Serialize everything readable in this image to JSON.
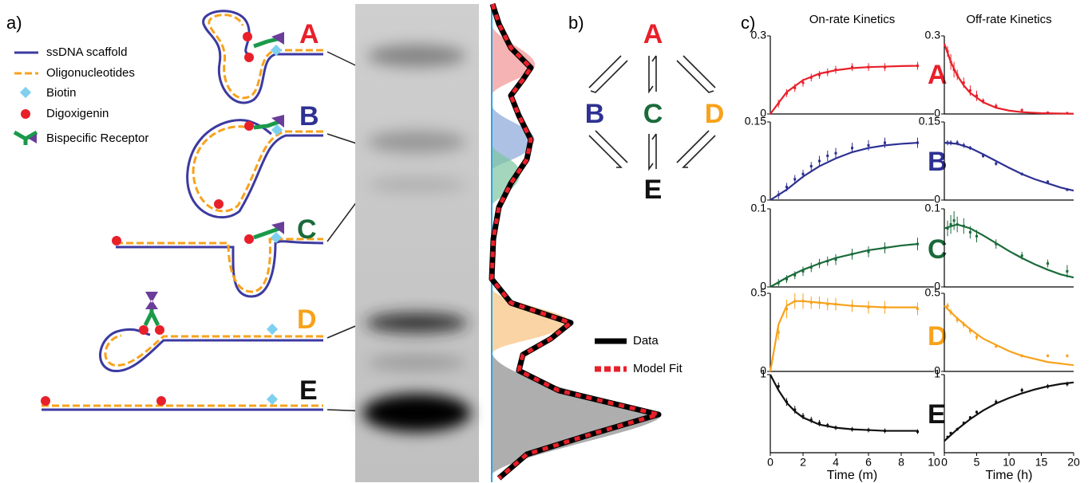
{
  "panel_a": {
    "label": "a)",
    "legend": [
      "ssDNA scaffold",
      "Oligonucleotides",
      "Biotin",
      "Digoxigenin",
      "Bispecific Receptor"
    ],
    "species": [
      "A",
      "B",
      "C",
      "D",
      "E"
    ],
    "profile_legend": [
      "Data",
      "Model Fit"
    ]
  },
  "panel_b": {
    "label": "b)",
    "species": [
      "A",
      "B",
      "C",
      "D",
      "E"
    ]
  },
  "panel_c": {
    "label": "c)",
    "species": [
      "A",
      "B",
      "C",
      "D",
      "E"
    ]
  },
  "chart_data": [
    {
      "type": "scatter",
      "title": "On-rate Kinetics",
      "color": "#e8202a",
      "xlim": [
        0,
        10
      ],
      "ylim": [
        0,
        0.3
      ],
      "yticks": [
        0,
        0.3
      ],
      "points": {
        "x": [
          0.5,
          1,
          1.5,
          2,
          2.5,
          3,
          3.5,
          4,
          5,
          6,
          7,
          9
        ],
        "values": [
          0.04,
          0.08,
          0.1,
          0.12,
          0.14,
          0.15,
          0.16,
          0.17,
          0.18,
          0.18,
          0.18,
          0.185
        ],
        "errors": [
          0.015,
          0.015,
          0.015,
          0.015,
          0.015,
          0.015,
          0.015,
          0.015,
          0.015,
          0.015,
          0.015,
          0.015
        ]
      },
      "fit": {
        "x": [
          0,
          1,
          2,
          3,
          4,
          5,
          6,
          7,
          8,
          9
        ],
        "values": [
          0,
          0.084,
          0.13,
          0.155,
          0.168,
          0.176,
          0.18,
          0.182,
          0.184,
          0.185
        ]
      }
    },
    {
      "type": "scatter",
      "title": "Off-rate Kinetics",
      "color": "#e8202a",
      "xlim": [
        0,
        20
      ],
      "ylim": [
        0,
        0.3
      ],
      "yticks": [
        0,
        0.3
      ],
      "points": {
        "x": [
          0.5,
          1,
          1.5,
          2,
          3,
          4,
          5,
          6,
          8,
          12,
          16,
          19
        ],
        "values": [
          0.24,
          0.2,
          0.17,
          0.15,
          0.12,
          0.09,
          0.07,
          0.05,
          0.03,
          0.015,
          0.005,
          0.003
        ],
        "errors": [
          0.02,
          0.03,
          0.03,
          0.02,
          0.02,
          0.02,
          0.02,
          0.01,
          0.01,
          0.005,
          0.003,
          0.002
        ]
      },
      "fit": {
        "x": [
          0,
          1,
          2,
          3,
          4,
          6,
          8,
          10,
          12,
          15,
          20
        ],
        "values": [
          0.27,
          0.2,
          0.148,
          0.11,
          0.081,
          0.045,
          0.024,
          0.013,
          0.007,
          0.003,
          0.001
        ]
      }
    },
    {
      "type": "scatter",
      "color": "#2e3192",
      "xlim": [
        0,
        10
      ],
      "ylim": [
        0,
        0.15
      ],
      "yticks": [
        0,
        0.15
      ],
      "points": {
        "x": [
          0.5,
          1,
          1.5,
          2,
          2.5,
          3,
          3.5,
          4,
          5,
          6,
          7,
          9
        ],
        "values": [
          0.01,
          0.025,
          0.04,
          0.05,
          0.065,
          0.075,
          0.085,
          0.09,
          0.1,
          0.105,
          0.11,
          0.11
        ],
        "errors": [
          0.008,
          0.008,
          0.008,
          0.008,
          0.008,
          0.01,
          0.01,
          0.01,
          0.01,
          0.01,
          0.01,
          0.01
        ]
      },
      "fit": {
        "x": [
          0,
          1,
          2,
          3,
          4,
          5,
          6,
          7,
          8,
          9
        ],
        "values": [
          0,
          0.02,
          0.045,
          0.065,
          0.08,
          0.092,
          0.1,
          0.105,
          0.108,
          0.11
        ]
      }
    },
    {
      "type": "scatter",
      "color": "#2e3192",
      "xlim": [
        0,
        20
      ],
      "ylim": [
        0,
        0.15
      ],
      "yticks": [
        0,
        0.15
      ],
      "points": {
        "x": [
          0.5,
          1,
          2,
          3,
          4,
          6,
          8,
          12,
          16,
          19
        ],
        "values": [
          0.11,
          0.11,
          0.11,
          0.105,
          0.1,
          0.085,
          0.07,
          0.05,
          0.035,
          0.02
        ],
        "errors": [
          0.005,
          0.005,
          0.005,
          0.005,
          0.004,
          0.004,
          0.004,
          0.003,
          0.003,
          0.003
        ]
      },
      "fit": {
        "x": [
          0,
          2,
          4,
          6,
          8,
          10,
          12,
          14,
          16,
          18,
          20
        ],
        "values": [
          0.11,
          0.108,
          0.1,
          0.088,
          0.075,
          0.062,
          0.05,
          0.04,
          0.032,
          0.024,
          0.018
        ]
      }
    },
    {
      "type": "scatter",
      "color": "#1a6b3a",
      "xlim": [
        0,
        10
      ],
      "ylim": [
        0,
        0.1
      ],
      "yticks": [
        0,
        0.1
      ],
      "points": {
        "x": [
          0.5,
          1,
          1.5,
          2,
          2.5,
          3,
          3.5,
          4,
          5,
          6,
          7,
          9
        ],
        "values": [
          0.005,
          0.01,
          0.015,
          0.02,
          0.025,
          0.03,
          0.033,
          0.035,
          0.042,
          0.045,
          0.05,
          0.055
        ],
        "errors": [
          0.005,
          0.005,
          0.005,
          0.006,
          0.006,
          0.006,
          0.006,
          0.007,
          0.007,
          0.007,
          0.007,
          0.008
        ]
      },
      "fit": {
        "x": [
          0,
          1,
          2,
          3,
          4,
          5,
          6,
          7,
          8,
          9
        ],
        "values": [
          0,
          0.012,
          0.022,
          0.03,
          0.037,
          0.042,
          0.047,
          0.05,
          0.053,
          0.055
        ]
      }
    },
    {
      "type": "scatter",
      "color": "#1a6b3a",
      "xlim": [
        0,
        20
      ],
      "ylim": [
        0,
        0.1
      ],
      "yticks": [
        0,
        0.1
      ],
      "points": {
        "x": [
          0.5,
          1,
          1.5,
          2,
          3,
          4,
          5,
          8,
          12,
          16,
          19
        ],
        "values": [
          0.075,
          0.08,
          0.085,
          0.08,
          0.078,
          0.07,
          0.065,
          0.055,
          0.04,
          0.03,
          0.02
        ],
        "errors": [
          0.01,
          0.012,
          0.012,
          0.01,
          0.01,
          0.008,
          0.008,
          0.006,
          0.005,
          0.005,
          0.008
        ]
      },
      "fit": {
        "x": [
          0,
          2,
          4,
          6,
          8,
          10,
          12,
          14,
          16,
          18,
          20
        ],
        "values": [
          0.075,
          0.08,
          0.075,
          0.066,
          0.056,
          0.046,
          0.037,
          0.029,
          0.022,
          0.016,
          0.012
        ]
      }
    },
    {
      "type": "scatter",
      "color": "#f7a21b",
      "xlim": [
        0,
        10
      ],
      "ylim": [
        0,
        0.5
      ],
      "yticks": [
        0,
        0.5
      ],
      "points": {
        "x": [
          0.5,
          1,
          1.5,
          2,
          2.5,
          3,
          3.5,
          4,
          5,
          6,
          7,
          9
        ],
        "values": [
          0.25,
          0.4,
          0.45,
          0.45,
          0.44,
          0.44,
          0.43,
          0.43,
          0.42,
          0.41,
          0.41,
          0.4
        ],
        "errors": [
          0.05,
          0.06,
          0.05,
          0.05,
          0.04,
          0.04,
          0.04,
          0.04,
          0.04,
          0.04,
          0.04,
          0.04
        ]
      },
      "fit": {
        "x": [
          0,
          0.5,
          1,
          1.5,
          2,
          3,
          4,
          5,
          6,
          7,
          8,
          9
        ],
        "values": [
          0,
          0.3,
          0.42,
          0.45,
          0.45,
          0.44,
          0.43,
          0.42,
          0.415,
          0.41,
          0.41,
          0.41
        ]
      }
    },
    {
      "type": "scatter",
      "color": "#f7a21b",
      "xlim": [
        0,
        20
      ],
      "ylim": [
        0,
        0.5
      ],
      "yticks": [
        0,
        0.5
      ],
      "points": {
        "x": [
          0.5,
          1,
          2,
          3,
          4,
          5,
          8,
          12,
          16,
          19
        ],
        "values": [
          0.42,
          0.38,
          0.33,
          0.3,
          0.26,
          0.22,
          0.16,
          0.1,
          0.1,
          0.1
        ],
        "errors": [
          0.02,
          0.02,
          0.02,
          0.02,
          0.02,
          0.02,
          0.01,
          0.01,
          0.01,
          0.01
        ]
      },
      "fit": {
        "x": [
          0,
          2,
          4,
          6,
          8,
          10,
          12,
          14,
          16,
          18,
          20
        ],
        "values": [
          0.42,
          0.34,
          0.27,
          0.21,
          0.17,
          0.13,
          0.1,
          0.08,
          0.06,
          0.05,
          0.04
        ]
      }
    },
    {
      "type": "scatter",
      "color": "#111111",
      "xlim": [
        0,
        10
      ],
      "ylim": [
        0,
        1
      ],
      "yticks": [
        1
      ],
      "xticks": [
        0,
        2,
        4,
        6,
        8,
        10
      ],
      "xlabel": "Time (m)",
      "points": {
        "x": [
          0.5,
          1,
          1.5,
          2,
          2.5,
          3,
          3.5,
          4,
          5,
          6,
          7,
          9
        ],
        "values": [
          0.85,
          0.65,
          0.55,
          0.47,
          0.42,
          0.38,
          0.35,
          0.32,
          0.3,
          0.29,
          0.28,
          0.27
        ],
        "errors": [
          0.05,
          0.05,
          0.05,
          0.04,
          0.04,
          0.04,
          0.03,
          0.03,
          0.03,
          0.03,
          0.03,
          0.03
        ]
      },
      "fit": {
        "x": [
          0,
          0.5,
          1,
          1.5,
          2,
          3,
          4,
          5,
          6,
          7,
          8,
          9
        ],
        "values": [
          1,
          0.8,
          0.64,
          0.53,
          0.45,
          0.36,
          0.32,
          0.3,
          0.29,
          0.28,
          0.28,
          0.28
        ]
      }
    },
    {
      "type": "scatter",
      "color": "#111111",
      "xlim": [
        0,
        20
      ],
      "ylim": [
        0,
        1
      ],
      "yticks": [
        1
      ],
      "xticks": [
        0,
        5,
        10,
        15,
        20
      ],
      "xlabel": "Time (h)",
      "points": {
        "x": [
          0.5,
          1,
          2,
          3,
          4,
          5,
          8,
          12,
          16,
          19
        ],
        "values": [
          0.2,
          0.25,
          0.3,
          0.38,
          0.45,
          0.52,
          0.65,
          0.8,
          0.85,
          0.88
        ],
        "errors": [
          0.02,
          0.02,
          0.02,
          0.02,
          0.02,
          0.02,
          0.03,
          0.03,
          0.03,
          0.03
        ]
      },
      "fit": {
        "x": [
          0,
          2,
          4,
          6,
          8,
          10,
          12,
          14,
          16,
          18,
          20
        ],
        "values": [
          0.15,
          0.3,
          0.43,
          0.54,
          0.63,
          0.7,
          0.76,
          0.81,
          0.85,
          0.88,
          0.9
        ]
      }
    }
  ]
}
